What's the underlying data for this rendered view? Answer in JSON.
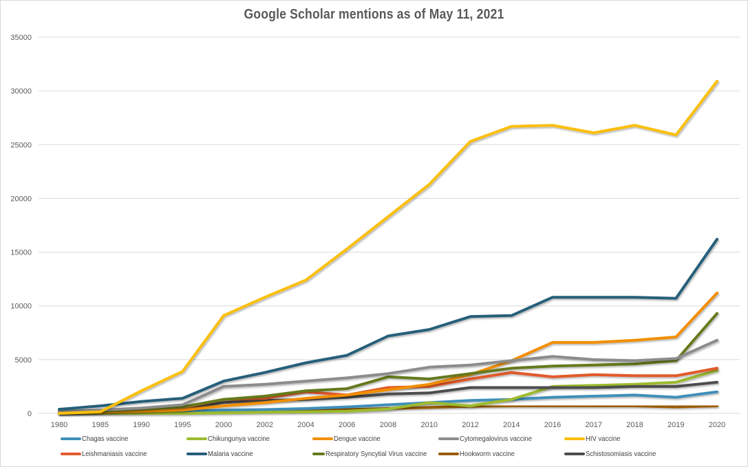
{
  "chart_data": {
    "type": "line",
    "title": "Google Scholar mentions as of May 11, 2021",
    "xlabel": "",
    "ylabel": "",
    "x": [
      "1980",
      "1985",
      "1990",
      "1995",
      "2000",
      "2002",
      "2004",
      "2006",
      "2008",
      "2010",
      "2012",
      "2014",
      "2016",
      "2017",
      "2018",
      "2019",
      "2020"
    ],
    "ylim": [
      0,
      35000
    ],
    "yticks": [
      0,
      5000,
      10000,
      15000,
      20000,
      25000,
      30000,
      35000
    ],
    "ytick_labels": [
      "0",
      "5000",
      "10000",
      "15000",
      "20000",
      "25000",
      "30000",
      "35000"
    ],
    "grid": true,
    "legend_position": "bottom",
    "series": [
      {
        "name": "Chagas vaccine",
        "color": "#3f8fba",
        "values": [
          50,
          100,
          150,
          200,
          300,
          350,
          450,
          600,
          800,
          1000,
          1200,
          1300,
          1500,
          1600,
          1700,
          1500,
          2000
        ]
      },
      {
        "name": "Chikungunya vaccine",
        "color": "#9dbb2f",
        "values": [
          0,
          0,
          0,
          0,
          50,
          100,
          150,
          200,
          400,
          1000,
          700,
          1300,
          2500,
          2600,
          2700,
          2900,
          4000
        ]
      },
      {
        "name": "Dengue vaccine",
        "color": "#f28e00",
        "values": [
          50,
          100,
          200,
          300,
          700,
          1000,
          1400,
          1700,
          2200,
          2700,
          3600,
          4900,
          6600,
          6600,
          6800,
          7100,
          11200
        ]
      },
      {
        "name": "Cytomegalovirus vaccine",
        "color": "#8c8c8c",
        "values": [
          200,
          300,
          500,
          800,
          2500,
          2700,
          3000,
          3300,
          3700,
          4300,
          4500,
          4900,
          5300,
          5000,
          4900,
          5100,
          6800
        ]
      },
      {
        "name": "HIV vaccine",
        "color": "#fbbf0d",
        "values": [
          0,
          150,
          2100,
          3900,
          9100,
          10800,
          12400,
          15300,
          18300,
          21300,
          25300,
          26700,
          26800,
          26100,
          26800,
          25900,
          30900
        ]
      },
      {
        "name": "Leishmaniasis vaccine",
        "color": "#e25a2c",
        "values": [
          100,
          200,
          300,
          500,
          1300,
          1400,
          2000,
          1700,
          2400,
          2500,
          3200,
          3800,
          3400,
          3600,
          3500,
          3500,
          4200
        ]
      },
      {
        "name": "Malaria vaccine",
        "color": "#255e7a",
        "values": [
          380,
          700,
          1100,
          1400,
          3000,
          3800,
          4700,
          5400,
          7200,
          7800,
          9000,
          9100,
          10800,
          10800,
          10800,
          10700,
          16200
        ]
      },
      {
        "name": "Respiratory Syncytial Virus vaccine",
        "color": "#657a1c",
        "values": [
          100,
          200,
          400,
          600,
          1300,
          1600,
          2100,
          2300,
          3400,
          3200,
          3700,
          4200,
          4400,
          4500,
          4600,
          4900,
          9300
        ]
      },
      {
        "name": "Hookworm vaccine",
        "color": "#995c00",
        "values": [
          0,
          50,
          100,
          150,
          200,
          250,
          300,
          350,
          450,
          550,
          650,
          700,
          700,
          700,
          700,
          600,
          700
        ]
      },
      {
        "name": "Schistosomiasis vaccine",
        "color": "#4d4d4d",
        "values": [
          100,
          200,
          300,
          400,
          1000,
          1200,
          1300,
          1500,
          1800,
          1900,
          2400,
          2400,
          2400,
          2400,
          2500,
          2500,
          2900
        ]
      }
    ]
  }
}
